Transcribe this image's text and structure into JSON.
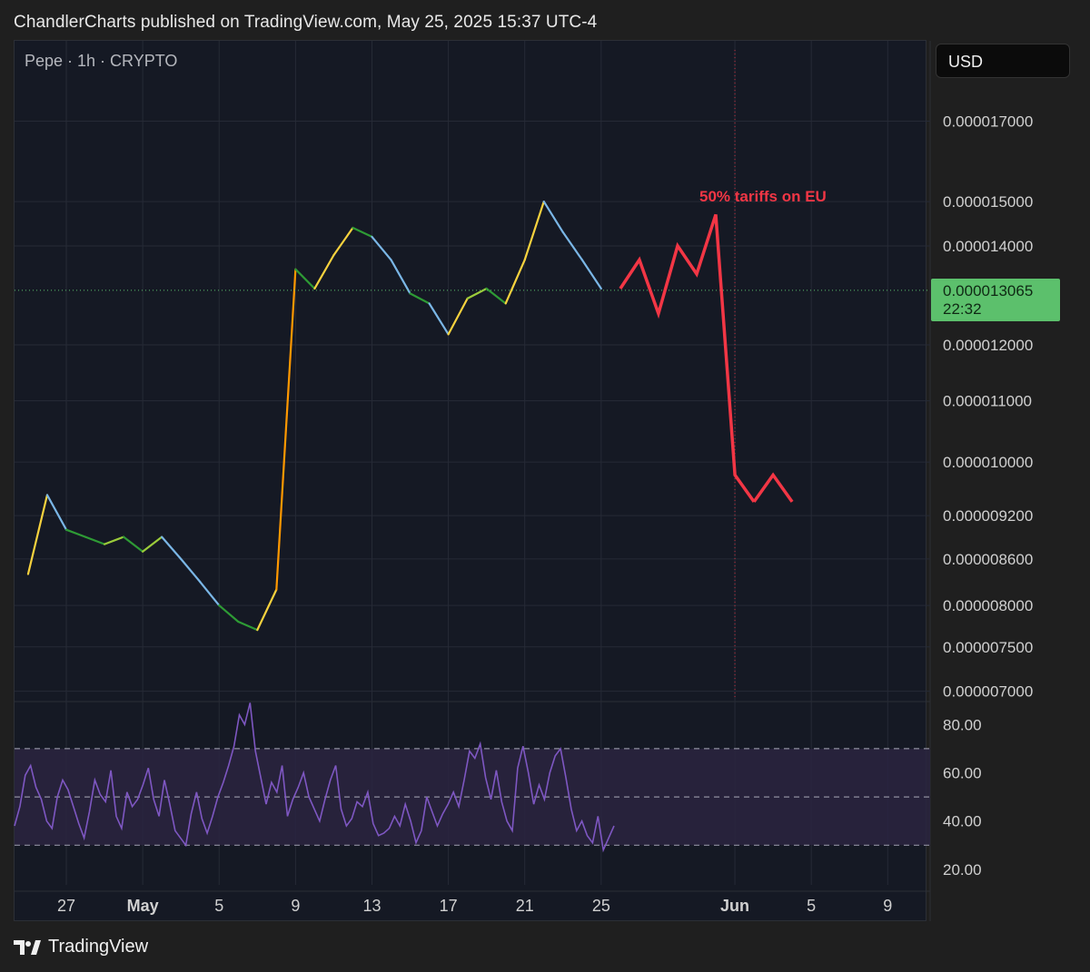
{
  "header": {
    "published_line": "ChandlerCharts published on TradingView.com, May 25, 2025 15:37 UTC-4"
  },
  "chart_header": {
    "symbol_line": "Pepe · 1h · CRYPTO"
  },
  "currency_button": {
    "label": "USD"
  },
  "last_price": {
    "value": "0.000013065",
    "countdown": "22:32",
    "color": "#5cc06c"
  },
  "annotation": {
    "text": "50% tariffs on EU",
    "color": "#f23645"
  },
  "footer": {
    "brand": "TradingView"
  },
  "colors": {
    "background": "#151924",
    "rsi_line": "#7e57c2",
    "rsi_band": "#2a2440",
    "grid": "#262a36"
  },
  "chart_data": [
    {
      "type": "line",
      "title": "Pepe · 1h · CRYPTO",
      "y_scale": "log",
      "y_ticks": [
        "0.000017000",
        "0.000015000",
        "0.000014000",
        "0.000012000",
        "0.000011000",
        "0.000010000",
        "0.000009200",
        "0.000008600",
        "0.000008000",
        "0.000007500",
        "0.000007000"
      ],
      "x_ticks": [
        "27",
        "May",
        "5",
        "9",
        "13",
        "17",
        "21",
        "25",
        "Jun",
        "5",
        "9"
      ],
      "x": [
        "Apr 25",
        "Apr 26",
        "Apr 27",
        "Apr 28",
        "Apr 29",
        "Apr 30",
        "May 1",
        "May 2",
        "May 3",
        "May 4",
        "May 5",
        "May 6",
        "May 7",
        "May 8",
        "May 9",
        "May 10",
        "May 11",
        "May 12",
        "May 13",
        "May 14",
        "May 15",
        "May 16",
        "May 17",
        "May 18",
        "May 19",
        "May 20",
        "May 21",
        "May 22",
        "May 23",
        "May 24",
        "May 25"
      ],
      "series": [
        {
          "values": [
            8.4e-06,
            9.5e-06,
            9e-06,
            8.9e-06,
            8.8e-06,
            8.9e-06,
            8.7e-06,
            8.9e-06,
            8.6e-06,
            8.3e-06,
            8e-06,
            7.8e-06,
            7.7e-06,
            8.2e-06,
            1.35e-05,
            1.31e-05,
            1.38e-05,
            1.44e-05,
            1.42e-05,
            1.37e-05,
            1.3e-05,
            1.28e-05,
            1.22e-05,
            1.29e-05,
            1.31e-05,
            1.28e-05,
            1.37e-05,
            1.5e-05,
            1.43e-05,
            1.37e-05,
            1.31e-05
          ]
        }
      ],
      "last_price": 1.3065e-05,
      "projection": {
        "dates": [
          "May 26",
          "May 27",
          "May 28",
          "May 29",
          "May 30",
          "May 31",
          "Jun 1",
          "Jun 2",
          "Jun 3",
          "Jun 4"
        ],
        "values": [
          1.31e-05,
          1.37e-05,
          1.26e-05,
          1.4e-05,
          1.34e-05,
          1.47e-05,
          9.8e-06,
          9.4e-06,
          9.8e-06,
          9.4e-06
        ],
        "label": "50% tariffs on EU"
      },
      "event_date": "Jun 1"
    },
    {
      "type": "line",
      "y_ticks": [
        "80.00",
        "60.00",
        "40.00",
        "20.00"
      ],
      "bands": [
        30,
        50,
        70
      ],
      "series": [
        {
          "values": [
            38,
            46,
            59,
            63,
            54,
            49,
            40,
            37,
            50,
            57,
            53,
            46,
            39,
            33,
            44,
            57,
            51,
            48,
            61,
            42,
            37,
            52,
            46,
            49,
            55,
            62,
            49,
            42,
            57,
            47,
            36,
            33,
            30,
            43,
            52,
            41,
            35,
            42,
            50,
            56,
            63,
            71,
            84,
            80,
            89,
            69,
            58,
            47,
            56,
            52,
            63,
            42,
            49,
            54,
            60,
            50,
            45,
            40,
            49,
            57,
            63,
            45,
            38,
            41,
            48,
            46,
            52,
            39,
            34,
            35,
            37,
            42,
            38,
            47,
            40,
            31,
            36,
            50,
            44,
            38,
            43,
            47,
            52,
            46,
            57,
            69,
            66,
            72,
            58,
            49,
            61,
            48,
            40,
            36,
            62,
            71,
            60,
            47,
            55,
            49,
            60,
            67,
            70,
            58,
            45,
            36,
            40,
            34,
            31,
            42,
            28,
            33,
            38
          ]
        }
      ]
    }
  ]
}
